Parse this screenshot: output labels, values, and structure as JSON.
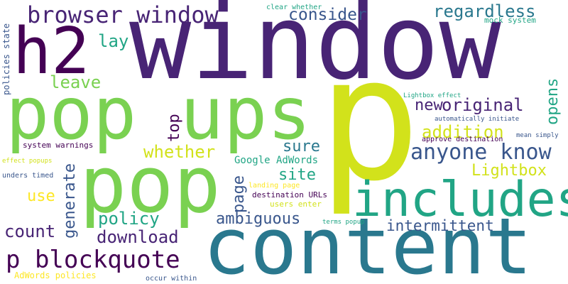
{
  "cloud": {
    "background": "#ffffff",
    "palette": {
      "dark_purple": "#482475",
      "deep_purple": "#440154",
      "indigo": "#39568c",
      "teal": "#2a788e",
      "sea_green": "#21a585",
      "green": "#7ad151",
      "lime": "#d2e21b",
      "yellow": "#fde725",
      "navy": "#414487"
    },
    "words": {
      "window": "window",
      "p": "p",
      "content": "content",
      "pop_ups": "pop ups",
      "pop": "pop",
      "includes": "includes",
      "h2": "h2",
      "browser_window": "browser window",
      "p_blockquote": "p blockquote",
      "anyone_know": "anyone know",
      "consider": "consider",
      "regardless": "regardless",
      "lay": "lay",
      "leave": "leave",
      "original": "original",
      "new": "new",
      "addition": "addition",
      "opens": "opens",
      "top": "top",
      "whether": "whether",
      "sure": "sure",
      "lightbox": "Lightbox",
      "site": "site",
      "generate": "generate",
      "page": "page",
      "policy": "policy",
      "ambiguous": "ambiguous",
      "use": "use",
      "count": "count",
      "download": "download",
      "intermittent": "intermittent",
      "google_adwords": "Google AdWords",
      "policies_state": "policies state",
      "clear_whether": "clear whether",
      "mock_system": "mock system",
      "lightbox_effect": "Lightbox effect",
      "automatically_initiate": "automatically initiate",
      "mean_simply": "mean simply",
      "approve_destination": "approve destination",
      "system_warnings": "system warnings",
      "effect_popups": "effect popups",
      "unders_timed": "unders timed",
      "landing_page": "landing page",
      "destination_urls": "destination URLs",
      "users_enter": "users enter",
      "terms_popup": "terms popup",
      "adwords_policies": "AdWords policies",
      "occur_within": "occur within"
    }
  }
}
